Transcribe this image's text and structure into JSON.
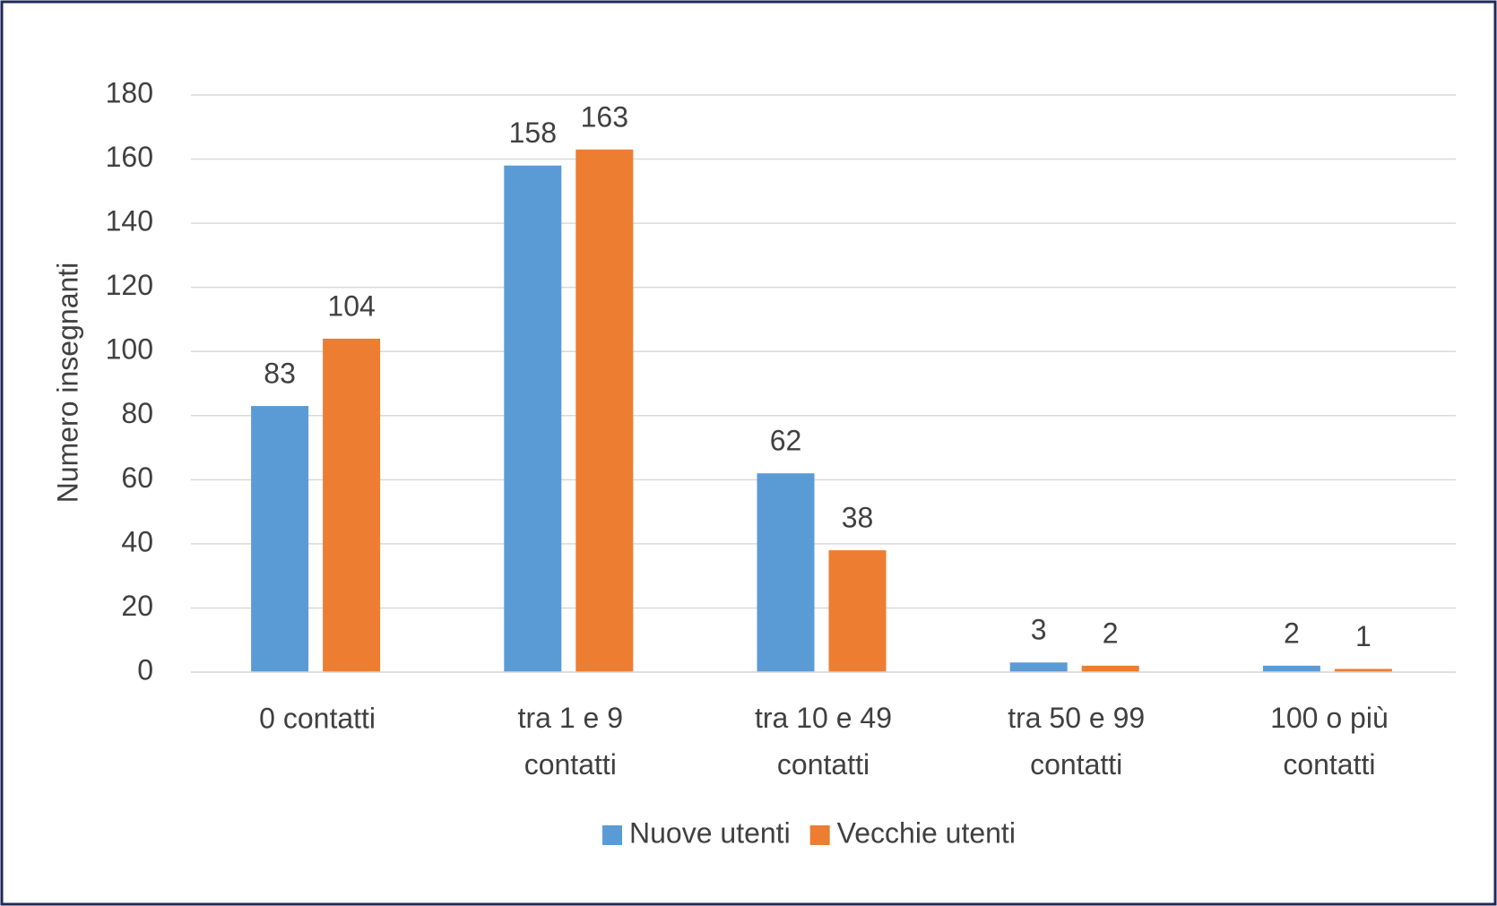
{
  "chart_data": {
    "type": "bar",
    "y_axis_label": "Numero insegnanti",
    "categories": [
      "0 contatti",
      "tra 1 e 9 contatti",
      "tra 10 e 49 contatti",
      "tra 50 e 99 contatti",
      "100 o più contatti"
    ],
    "series": [
      {
        "name": "Nuove utenti",
        "color": "#5b9bd5",
        "values": [
          83,
          158,
          62,
          3,
          2
        ]
      },
      {
        "name": "Vecchie utenti",
        "color": "#ed7d31",
        "values": [
          104,
          163,
          38,
          2,
          1
        ]
      }
    ],
    "ylim": [
      0,
      180
    ],
    "yticks": [
      0,
      20,
      40,
      60,
      80,
      100,
      120,
      140,
      160,
      180
    ],
    "grid": true,
    "legend": "bottom"
  }
}
